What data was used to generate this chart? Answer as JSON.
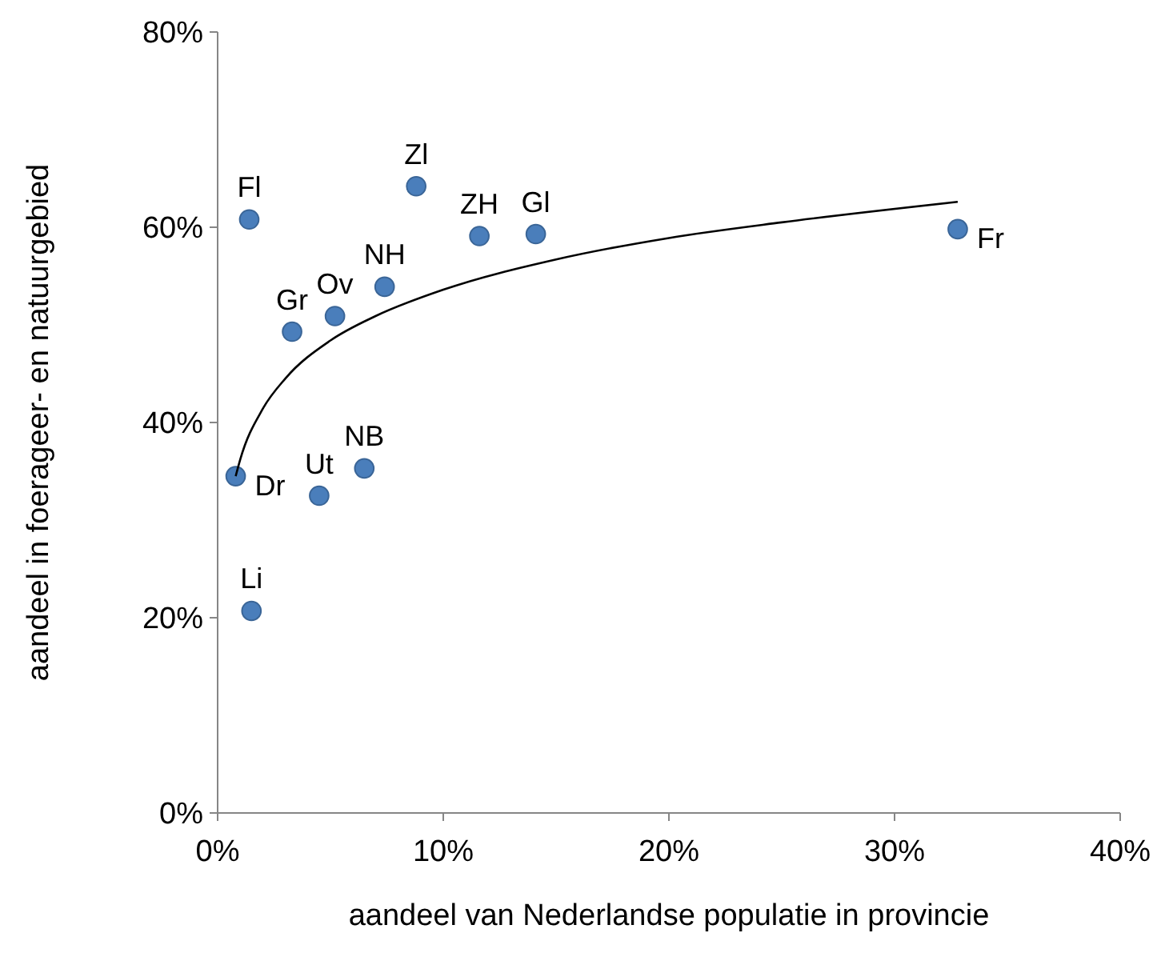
{
  "chart_data": {
    "type": "scatter",
    "xlabel": "aandeel van Nederlandse populatie in provincie",
    "ylabel": "aandeel in foerageer- en natuurgebied",
    "xlim": [
      0,
      40
    ],
    "xticks": [
      {
        "value": 0,
        "label": "0%"
      },
      {
        "value": 10,
        "label": "10%"
      },
      {
        "value": 20,
        "label": "20%"
      },
      {
        "value": 30,
        "label": "30%"
      },
      {
        "value": 40,
        "label": "40%"
      }
    ],
    "ylim": [
      0,
      80
    ],
    "yticks": [
      {
        "value": 0,
        "label": "0%"
      },
      {
        "value": 20,
        "label": "20%"
      },
      {
        "value": 40,
        "label": "40%"
      },
      {
        "value": 60,
        "label": "60%"
      },
      {
        "value": 80,
        "label": "80%"
      }
    ],
    "grid": false,
    "marker": "circle",
    "series": [
      {
        "color": "#4a7ebb",
        "x": [
          1.4,
          8.8,
          11.6,
          14.1,
          32.8,
          7.4,
          5.2,
          3.3,
          6.5,
          4.5,
          0.8,
          1.5
        ],
        "values": [
          60.8,
          64.2,
          59.1,
          59.3,
          59.8,
          53.9,
          50.9,
          49.3,
          35.3,
          32.5,
          34.5,
          20.7
        ]
      },
      {
        "type": "line",
        "color": "#000000",
        "line_style": "solid",
        "marker": "none",
        "x": [
          0.8,
          1,
          2,
          3,
          5,
          7,
          10,
          15,
          20,
          25,
          32.8
        ],
        "values": [
          34.5,
          36.2,
          41.4,
          44.5,
          48.4,
          50.9,
          53.6,
          56.7,
          58.9,
          60.5,
          62.6
        ]
      }
    ],
    "annotations": [
      {
        "text": "Fl",
        "x": 1.4,
        "y": 60.8
      },
      {
        "text": "Zl",
        "x": 8.8,
        "y": 64.2
      },
      {
        "text": "ZH",
        "x": 11.6,
        "y": 59.1
      },
      {
        "text": "Gl",
        "x": 14.1,
        "y": 59.3
      },
      {
        "text": "Fr",
        "x": 32.8,
        "y": 59.8
      },
      {
        "text": "NH",
        "x": 7.4,
        "y": 53.9
      },
      {
        "text": "Ov",
        "x": 5.2,
        "y": 50.9
      },
      {
        "text": "Gr",
        "x": 3.3,
        "y": 49.3
      },
      {
        "text": "NB",
        "x": 6.5,
        "y": 35.3
      },
      {
        "text": "Ut",
        "x": 4.5,
        "y": 32.5
      },
      {
        "text": "Dr",
        "x": 0.8,
        "y": 34.5
      },
      {
        "text": "Li",
        "x": 1.5,
        "y": 20.7
      }
    ]
  }
}
